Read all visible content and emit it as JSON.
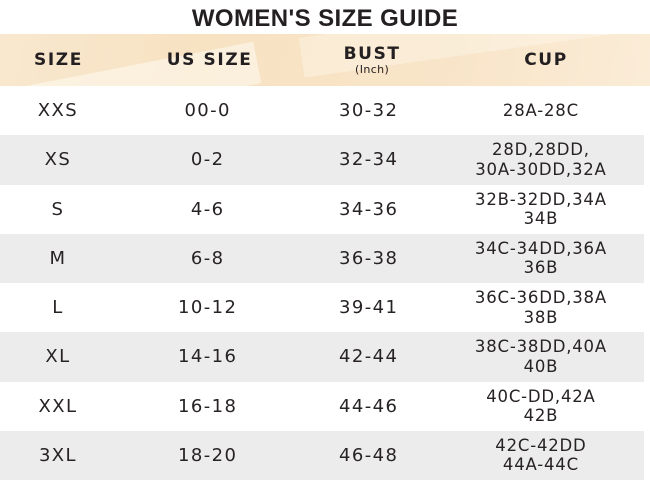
{
  "title": "WOMEN'S SIZE GUIDE",
  "colors": {
    "header_bg": "#f8e4c6",
    "header_bg_light": "#fdf2e0",
    "row_bg": "#ffffff",
    "row_alt_bg": "#ececec",
    "title_text": "#241f20",
    "body_text": "#272223"
  },
  "table": {
    "columns": {
      "size": {
        "label": "SIZE"
      },
      "us_size": {
        "label": "US SIZE"
      },
      "bust": {
        "label": "BUST",
        "sub": "(Inch)"
      },
      "cup": {
        "label": "CUP"
      }
    },
    "rows": [
      {
        "size": "XXS",
        "us_size": "00-0",
        "bust": "30-32",
        "cup_line1": "28A-28C",
        "cup_line2": ""
      },
      {
        "size": "XS",
        "us_size": "0-2",
        "bust": "32-34",
        "cup_line1": "28D,28DD,",
        "cup_line2": "30A-30DD,32A"
      },
      {
        "size": "S",
        "us_size": "4-6",
        "bust": "34-36",
        "cup_line1": "32B-32DD,34A",
        "cup_line2": "34B"
      },
      {
        "size": "M",
        "us_size": "6-8",
        "bust": "36-38",
        "cup_line1": "34C-34DD,36A",
        "cup_line2": "36B"
      },
      {
        "size": "L",
        "us_size": "10-12",
        "bust": "39-41",
        "cup_line1": "36C-36DD,38A",
        "cup_line2": "38B"
      },
      {
        "size": "XL",
        "us_size": "14-16",
        "bust": "42-44",
        "cup_line1": "38C-38DD,40A",
        "cup_line2": "40B"
      },
      {
        "size": "XXL",
        "us_size": "16-18",
        "bust": "44-46",
        "cup_line1": "40C-DD,42A",
        "cup_line2": "42B"
      },
      {
        "size": "3XL",
        "us_size": "18-20",
        "bust": "46-48",
        "cup_line1": "42C-42DD",
        "cup_line2": "44A-44C"
      }
    ]
  }
}
